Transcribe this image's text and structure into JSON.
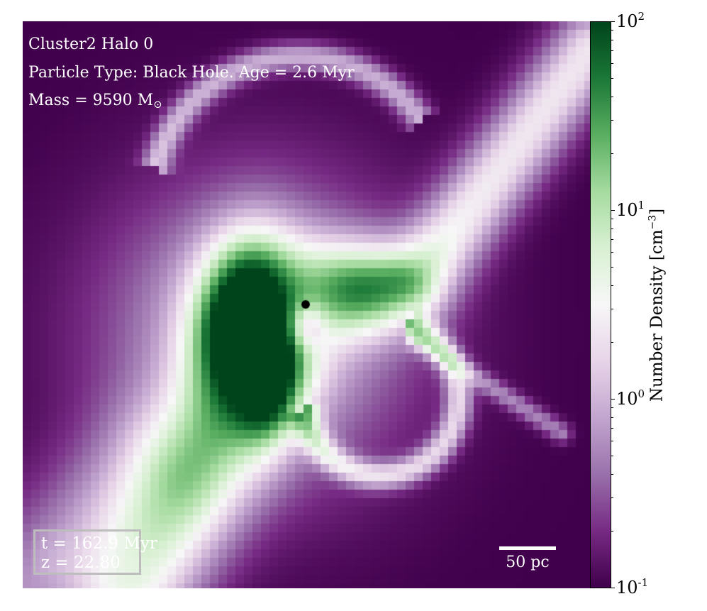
{
  "panel": {
    "title_line": "Cluster2 Halo 0",
    "particle_line": "Particle Type: Black Hole. Age = 2.6 Myr",
    "mass_prefix": "Mass = 9590 M",
    "mass_unit_sub": "⊙"
  },
  "time_box": {
    "time": "t = 162.9 Myr",
    "redshift": "z = 22.80"
  },
  "scale_bar": {
    "label": "50 pc"
  },
  "colorbar": {
    "label_main": "Number Density [cm",
    "label_exp": "−3",
    "label_end": "]",
    "scale": "log",
    "colormap": "PRGn",
    "ticks": [
      {
        "base": "10",
        "exp": "2",
        "value": 100
      },
      {
        "base": "10",
        "exp": "1",
        "value": 10
      },
      {
        "base": "10",
        "exp": "0",
        "value": 1
      },
      {
        "base": "10",
        "exp": "-1",
        "value": 0.1
      }
    ]
  },
  "colors": {
    "low": "#40004b",
    "mid": "#f7f7f7",
    "high": "#00441b",
    "black_hole_marker": "#000000"
  }
}
